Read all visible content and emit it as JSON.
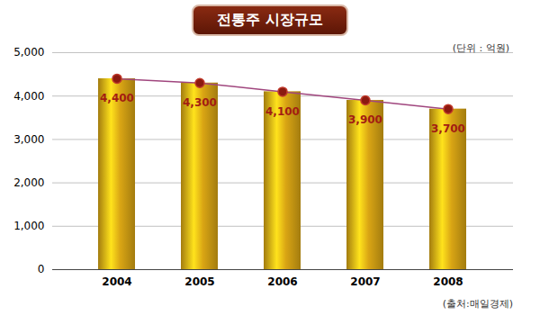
{
  "chart_data": {
    "type": "bar",
    "title": "전통주 시장규모",
    "ylabel": "(단위 : 억원)",
    "source": "(출처:매일경제)",
    "categories": [
      "2004",
      "2005",
      "2006",
      "2007",
      "2008"
    ],
    "values": [
      4400,
      4300,
      4100,
      3900,
      3700
    ],
    "value_labels": [
      "4,400",
      "4,300",
      "4,100",
      "3,900",
      "3,700"
    ],
    "color": "#d9a514",
    "ylim": [
      0,
      5000
    ],
    "yticks": [
      0,
      1000,
      2000,
      3000,
      4000,
      5000
    ],
    "grid": true,
    "data_labels": true,
    "marker": "circle",
    "line_style": "solid"
  }
}
